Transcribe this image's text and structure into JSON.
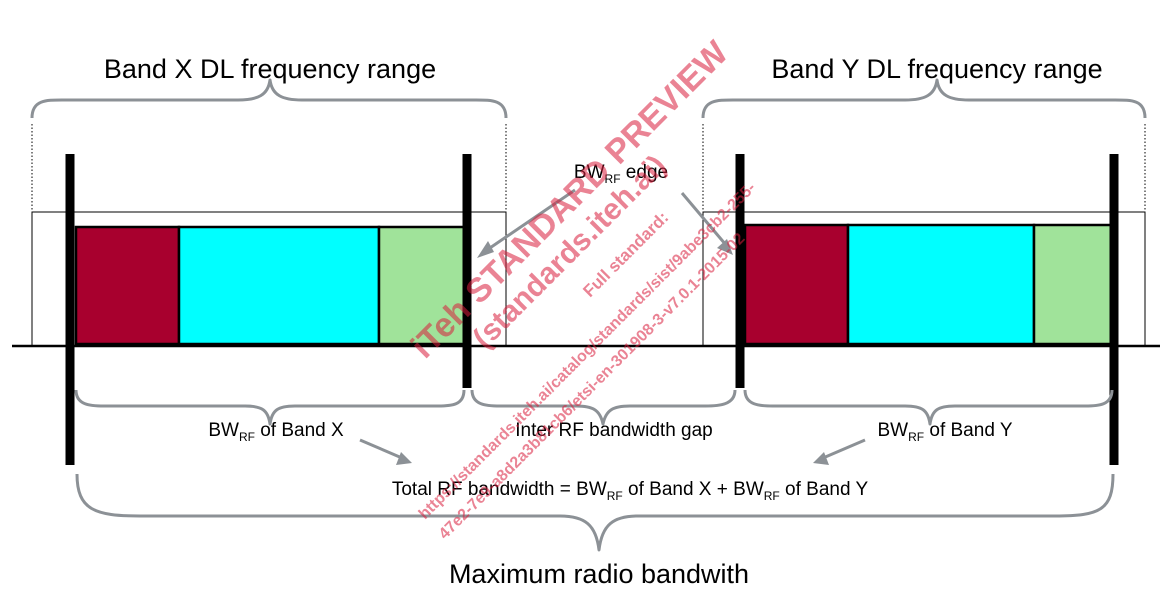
{
  "titles": {
    "band_x": "Band X DL frequency range",
    "band_y": "Band Y DL frequency range",
    "max_radio": "Maximum radio bandwith"
  },
  "labels": {
    "bw": "BW",
    "rf": "RF",
    "edge_suffix": " edge",
    "of_band_x": " of Band X",
    "of_band_y": " of Band Y",
    "gap": "Inter RF bandwidth gap",
    "total_prefix": "Total RF bandwidth = ",
    "plus": " + "
  },
  "watermark": {
    "line1": "iTeh STANDARD PREVIEW",
    "line2": "(standards.iteh.ai)",
    "line3": "Full standard:",
    "line4": "https://standards.iteh.ai/catalog/standards/sist/9abe3cb2-255-",
    "line5": "47e2-7e9-a8d2a3b81cb6/etsi-en-301908-3-v7.0.1-2015-02"
  },
  "colors": {
    "carrier_1": "#a8002e",
    "carrier_2": "#00ffff",
    "carrier_3": "#a0e39a",
    "annotation_gray": "#8c9196",
    "watermark": "#d81e3c"
  }
}
